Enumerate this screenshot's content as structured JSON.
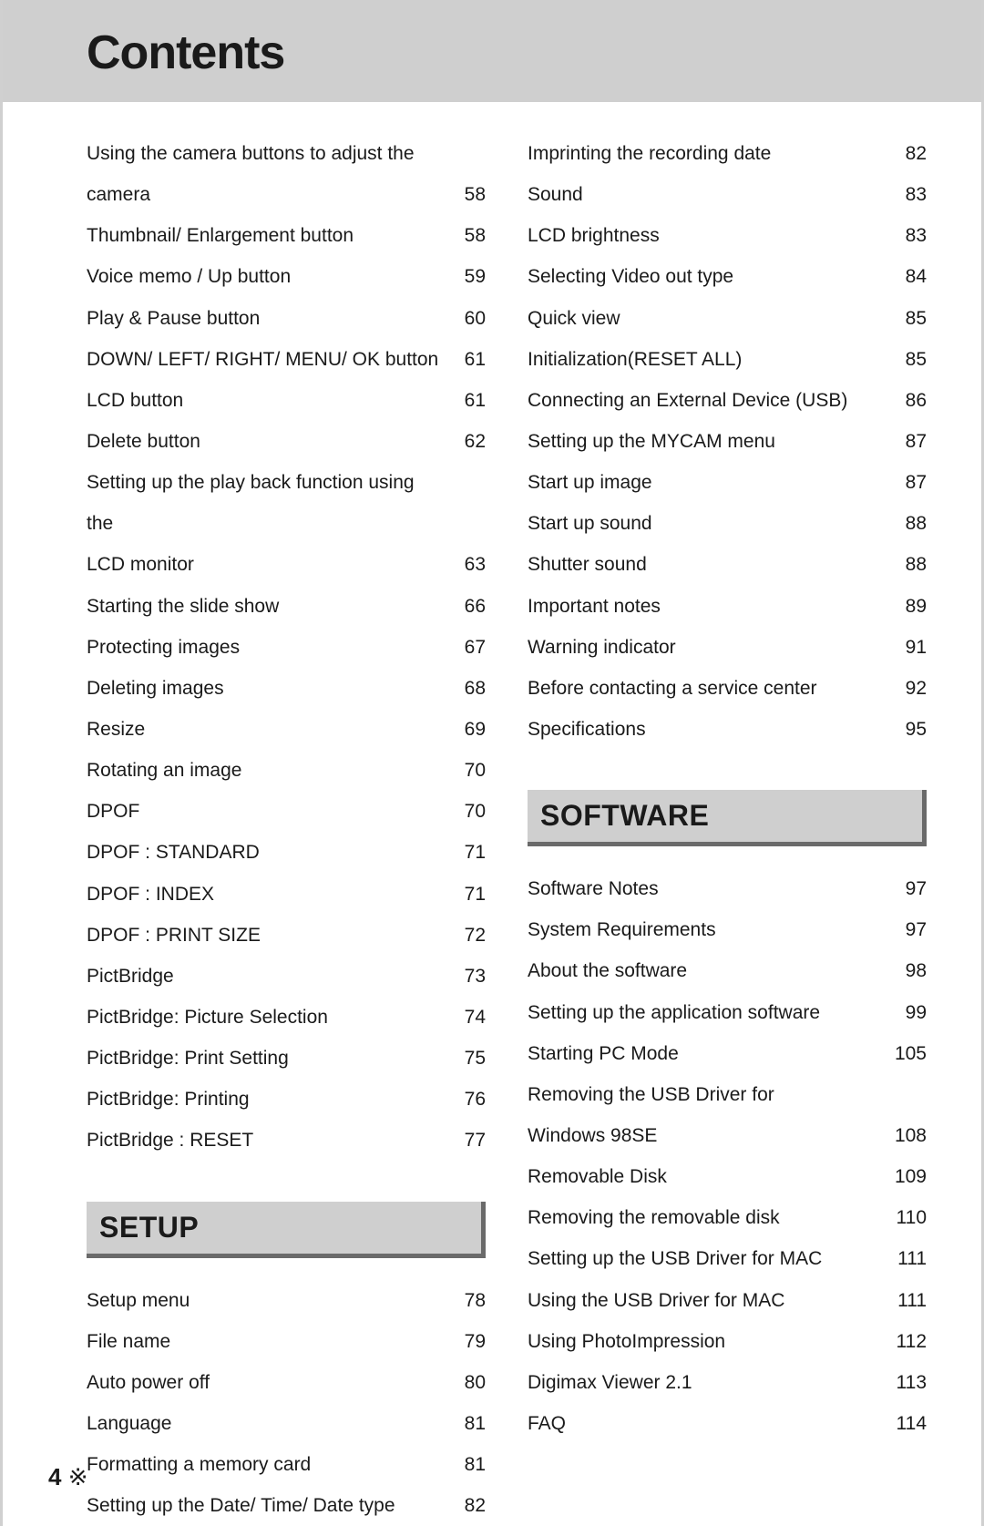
{
  "page": {
    "title": "Contents",
    "footer_number": "4",
    "footer_symbol": "※",
    "colors": {
      "title_bg": "#cfcfcf",
      "section_bg": "#cfcfcf",
      "section_shadow": "#6a6a6a",
      "text": "#1a1a1a",
      "page_bg": "#ffffff",
      "side_border": "#d0d0d0"
    },
    "typography": {
      "title_fontsize": 52,
      "title_weight": 800,
      "section_fontsize": 32,
      "section_weight": 800,
      "entry_fontsize": 21,
      "footer_fontsize": 26
    }
  },
  "left": {
    "block1": [
      {
        "t": "Using the camera buttons to adjust the",
        "p": ""
      },
      {
        "t": "camera",
        "p": "58"
      },
      {
        "t": "Thumbnail/ Enlargement button",
        "p": "58"
      },
      {
        "t": "Voice memo / Up button",
        "p": "59"
      },
      {
        "t": "Play & Pause button",
        "p": "60"
      },
      {
        "t": "DOWN/ LEFT/ RIGHT/ MENU/ OK button",
        "p": "61"
      },
      {
        "t": "LCD button",
        "p": "61"
      },
      {
        "t": "Delete button",
        "p": "62"
      },
      {
        "t": "Setting up the play back function using the",
        "p": ""
      },
      {
        "t": "LCD monitor",
        "p": "63"
      },
      {
        "t": "Starting the slide show",
        "p": "66"
      },
      {
        "t": "Protecting images",
        "p": "67"
      },
      {
        "t": "Deleting images",
        "p": "68"
      },
      {
        "t": "Resize",
        "p": "69"
      },
      {
        "t": "Rotating an image",
        "p": "70"
      },
      {
        "t": "DPOF",
        "p": "70"
      },
      {
        "t": "DPOF : STANDARD",
        "p": "71"
      },
      {
        "t": "DPOF : INDEX",
        "p": "71"
      },
      {
        "t": "DPOF : PRINT SIZE",
        "p": "72"
      },
      {
        "t": "PictBridge",
        "p": "73"
      },
      {
        "t": "PictBridge: Picture Selection",
        "p": "74"
      },
      {
        "t": "PictBridge: Print Setting",
        "p": "75"
      },
      {
        "t": "PictBridge: Printing",
        "p": "76"
      },
      {
        "t": "PictBridge : RESET",
        "p": "77"
      }
    ],
    "section1": "SETUP",
    "block2": [
      {
        "t": "Setup menu",
        "p": "78"
      },
      {
        "t": "File name",
        "p": "79"
      },
      {
        "t": "Auto power off",
        "p": "80"
      },
      {
        "t": "Language",
        "p": "81"
      },
      {
        "t": "Formatting a memory card",
        "p": "81"
      },
      {
        "t": "Setting up the Date/ Time/ Date type",
        "p": "82"
      }
    ]
  },
  "right": {
    "block1": [
      {
        "t": "Imprinting the recording date",
        "p": "82"
      },
      {
        "t": "Sound",
        "p": "83"
      },
      {
        "t": "LCD brightness",
        "p": "83"
      },
      {
        "t": "Selecting Video out type",
        "p": "84"
      },
      {
        "t": "Quick view",
        "p": "85"
      },
      {
        "t": "Initialization(RESET ALL)",
        "p": "85"
      },
      {
        "t": "Connecting an External Device (USB)",
        "p": "86"
      },
      {
        "t": "Setting up the MYCAM menu",
        "p": "87"
      },
      {
        "t": "Start up image",
        "p": "87"
      },
      {
        "t": "Start up sound",
        "p": "88"
      },
      {
        "t": "Shutter sound",
        "p": "88"
      },
      {
        "t": "Important notes",
        "p": "89"
      },
      {
        "t": "Warning indicator",
        "p": "91"
      },
      {
        "t": "Before contacting a service center",
        "p": "92"
      },
      {
        "t": "Specifications",
        "p": "95"
      }
    ],
    "section1": "SOFTWARE",
    "block2": [
      {
        "t": "Software Notes",
        "p": "97"
      },
      {
        "t": "System Requirements",
        "p": "97"
      },
      {
        "t": "About the software",
        "p": "98"
      },
      {
        "t": "Setting up the application software",
        "p": "99"
      },
      {
        "t": "Starting PC Mode",
        "p": "105"
      },
      {
        "t": "Removing the USB Driver for",
        "p": ""
      },
      {
        "t": "Windows 98SE",
        "p": "108"
      },
      {
        "t": "Removable Disk",
        "p": "109"
      },
      {
        "t": "Removing the removable disk",
        "p": "110"
      },
      {
        "t": "Setting up the USB Driver for MAC",
        "p": "111"
      },
      {
        "t": "Using the USB Driver for MAC",
        "p": "111"
      },
      {
        "t": "Using PhotoImpression",
        "p": "112"
      },
      {
        "t": "Digimax Viewer 2.1",
        "p": "113"
      },
      {
        "t": "FAQ",
        "p": "114"
      }
    ]
  }
}
